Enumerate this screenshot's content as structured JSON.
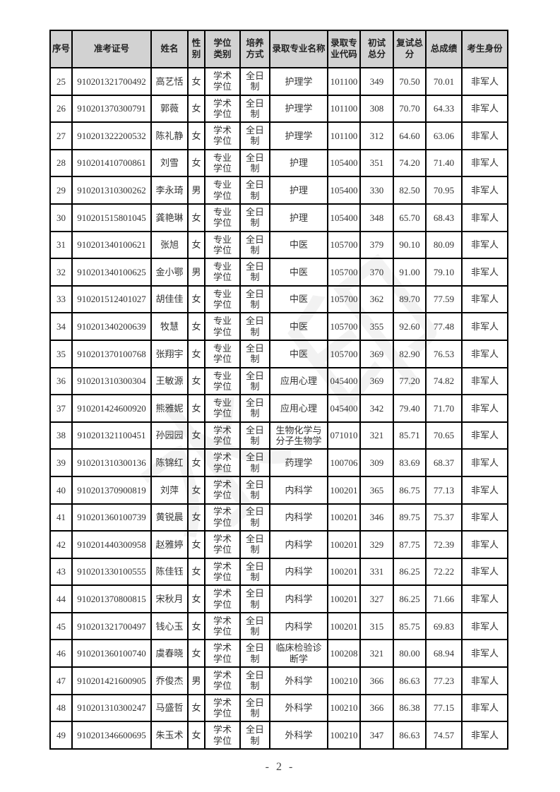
{
  "page": {
    "footer": "- 2 -",
    "watermark": "水印"
  },
  "colors": {
    "header_bg": "#d2d2d2",
    "border": "#000000",
    "body_text": "#333333",
    "header_text": "#222222"
  },
  "table": {
    "column_keys": [
      "index",
      "ticket_no",
      "name",
      "gender",
      "degree_type",
      "study_mode",
      "major_name",
      "major_code",
      "initial_score",
      "retest_score",
      "total_score",
      "identity"
    ],
    "columns": [
      "序号",
      "准考证号",
      "姓名",
      "性\n别",
      "学位\n类别",
      "培养\n方式",
      "录取专业名称",
      "录取专\n业代码",
      "初试\n总分",
      "复试总\n分",
      "总成绩",
      "考生身份"
    ],
    "rows": [
      [
        "25",
        "910201321700492",
        "高艺恬",
        "女",
        "学术\n学位",
        "全日\n制",
        "护理学",
        "101100",
        "349",
        "70.50",
        "70.01",
        "非军人"
      ],
      [
        "26",
        "910201370300791",
        "郭薇",
        "女",
        "学术\n学位",
        "全日\n制",
        "护理学",
        "101100",
        "308",
        "70.70",
        "64.33",
        "非军人"
      ],
      [
        "27",
        "910201322200532",
        "陈礼静",
        "女",
        "学术\n学位",
        "全日\n制",
        "护理学",
        "101100",
        "312",
        "64.60",
        "63.06",
        "非军人"
      ],
      [
        "28",
        "910201410700861",
        "刘雪",
        "女",
        "专业\n学位",
        "全日\n制",
        "护理",
        "105400",
        "351",
        "74.20",
        "71.40",
        "非军人"
      ],
      [
        "29",
        "910201310300262",
        "李永琦",
        "男",
        "专业\n学位",
        "全日\n制",
        "护理",
        "105400",
        "330",
        "82.50",
        "70.95",
        "非军人"
      ],
      [
        "30",
        "910201515801045",
        "龚艳琳",
        "女",
        "专业\n学位",
        "全日\n制",
        "护理",
        "105400",
        "348",
        "65.70",
        "68.43",
        "非军人"
      ],
      [
        "31",
        "910201340100621",
        "张旭",
        "女",
        "专业\n学位",
        "全日\n制",
        "中医",
        "105700",
        "379",
        "90.10",
        "80.09",
        "非军人"
      ],
      [
        "32",
        "910201340100625",
        "金小鄂",
        "男",
        "专业\n学位",
        "全日\n制",
        "中医",
        "105700",
        "370",
        "91.00",
        "79.10",
        "非军人"
      ],
      [
        "33",
        "910201512401027",
        "胡佳佳",
        "女",
        "专业\n学位",
        "全日\n制",
        "中医",
        "105700",
        "362",
        "89.70",
        "77.59",
        "非军人"
      ],
      [
        "34",
        "910201340200639",
        "牧慧",
        "女",
        "专业\n学位",
        "全日\n制",
        "中医",
        "105700",
        "355",
        "92.60",
        "77.48",
        "非军人"
      ],
      [
        "35",
        "910201370100768",
        "张翔宇",
        "女",
        "专业\n学位",
        "全日\n制",
        "中医",
        "105700",
        "369",
        "82.90",
        "76.53",
        "非军人"
      ],
      [
        "36",
        "910201310300304",
        "王敏源",
        "女",
        "专业\n学位",
        "全日\n制",
        "应用心理",
        "045400",
        "369",
        "77.20",
        "74.82",
        "非军人"
      ],
      [
        "37",
        "910201424600920",
        "熊雅妮",
        "女",
        "专业\n学位",
        "全日\n制",
        "应用心理",
        "045400",
        "342",
        "79.40",
        "71.70",
        "非军人"
      ],
      [
        "38",
        "910201321100451",
        "孙园园",
        "女",
        "学术\n学位",
        "全日\n制",
        "生物化学与分子生物学",
        "071010",
        "321",
        "85.71",
        "70.65",
        "非军人"
      ],
      [
        "39",
        "910201310300136",
        "陈锦红",
        "女",
        "学术\n学位",
        "全日\n制",
        "药理学",
        "100706",
        "309",
        "83.69",
        "68.37",
        "非军人"
      ],
      [
        "40",
        "910201370900819",
        "刘萍",
        "女",
        "学术\n学位",
        "全日\n制",
        "内科学",
        "100201",
        "365",
        "86.75",
        "77.13",
        "非军人"
      ],
      [
        "41",
        "910201360100739",
        "黄锐晨",
        "女",
        "学术\n学位",
        "全日\n制",
        "内科学",
        "100201",
        "346",
        "89.75",
        "75.37",
        "非军人"
      ],
      [
        "42",
        "910201440300958",
        "赵雅婷",
        "女",
        "学术\n学位",
        "全日\n制",
        "内科学",
        "100201",
        "329",
        "87.75",
        "72.39",
        "非军人"
      ],
      [
        "43",
        "910201330100555",
        "陈佳钰",
        "女",
        "学术\n学位",
        "全日\n制",
        "内科学",
        "100201",
        "331",
        "86.25",
        "72.22",
        "非军人"
      ],
      [
        "44",
        "910201370800815",
        "宋秋月",
        "女",
        "学术\n学位",
        "全日\n制",
        "内科学",
        "100201",
        "327",
        "86.25",
        "71.66",
        "非军人"
      ],
      [
        "45",
        "910201321700497",
        "钱心玉",
        "女",
        "学术\n学位",
        "全日\n制",
        "内科学",
        "100201",
        "315",
        "85.75",
        "69.83",
        "非军人"
      ],
      [
        "46",
        "910201360100740",
        "虞春晓",
        "女",
        "学术\n学位",
        "全日\n制",
        "临床检验诊断学",
        "100208",
        "321",
        "80.00",
        "68.94",
        "非军人"
      ],
      [
        "47",
        "910201421600905",
        "乔俊杰",
        "男",
        "学术\n学位",
        "全日\n制",
        "外科学",
        "100210",
        "366",
        "86.63",
        "77.23",
        "非军人"
      ],
      [
        "48",
        "910201310300247",
        "马盛哲",
        "女",
        "学术\n学位",
        "全日\n制",
        "外科学",
        "100210",
        "366",
        "86.38",
        "77.15",
        "非军人"
      ],
      [
        "49",
        "910201346600695",
        "朱玉术",
        "女",
        "学术\n学位",
        "全日\n制",
        "外科学",
        "100210",
        "347",
        "86.63",
        "74.57",
        "非军人"
      ]
    ]
  }
}
